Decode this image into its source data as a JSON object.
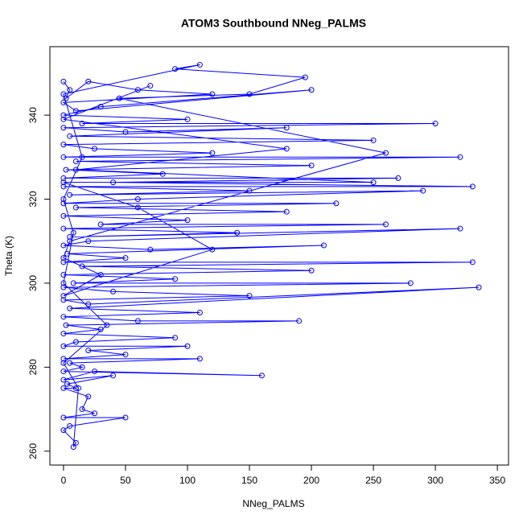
{
  "chart_data": {
    "type": "line",
    "title": "ATOM3 Southbound NNeg_PALMS",
    "x_label": "NNeg_PALMS",
    "y_label": "Theta (K)",
    "color": "#0000ff",
    "markers": true,
    "x": [
      0,
      5,
      2,
      20,
      60,
      120,
      0,
      10,
      200,
      30,
      0,
      100,
      15,
      300,
      0,
      50,
      180,
      5,
      250,
      0,
      25,
      120,
      0,
      320,
      10,
      200,
      2,
      80,
      0,
      270,
      40,
      330,
      0,
      150,
      5,
      290,
      60,
      0,
      220,
      10,
      180,
      0,
      100,
      30,
      260,
      0,
      140,
      5,
      320,
      20,
      0,
      70,
      210,
      3,
      50,
      0,
      330,
      15,
      200,
      0,
      90,
      8,
      280,
      0,
      40,
      150,
      0,
      20,
      335,
      5,
      110,
      0,
      60,
      190,
      2,
      30,
      0,
      90,
      10,
      0,
      100,
      20,
      50,
      0,
      110,
      5,
      15,
      0,
      160,
      25,
      0,
      40,
      3,
      10,
      0,
      20,
      15,
      25,
      0,
      50,
      5,
      0,
      10,
      8,
      12,
      0,
      35,
      0,
      8,
      0,
      15,
      0,
      110,
      90,
      195,
      150,
      45,
      260,
      5,
      0,
      30,
      0,
      120,
      60,
      0,
      250,
      10,
      180,
      0,
      70
    ],
    "values": [
      348,
      346,
      344,
      348,
      346,
      345,
      343,
      341,
      346,
      342,
      340,
      339,
      338,
      338,
      337,
      336,
      337,
      335,
      334,
      333,
      332,
      331,
      330,
      330,
      329,
      328,
      327,
      326,
      325,
      325,
      324,
      323,
      323,
      322,
      321,
      322,
      320,
      319,
      319,
      318,
      317,
      316,
      315,
      314,
      314,
      313,
      312,
      311,
      313,
      310,
      309,
      308,
      309,
      307,
      306,
      305,
      305,
      304,
      303,
      302,
      301,
      300,
      300,
      299,
      298,
      297,
      296,
      295,
      299,
      294,
      293,
      292,
      291,
      291,
      290,
      289,
      288,
      287,
      286,
      285,
      285,
      284,
      283,
      282,
      282,
      281,
      280,
      279,
      278,
      279,
      277,
      278,
      276,
      275,
      275,
      273,
      270,
      269,
      268,
      268,
      266,
      265,
      262,
      261,
      275,
      281,
      290,
      300,
      312,
      320,
      330,
      345,
      352,
      351,
      349,
      345,
      344,
      331,
      310,
      306,
      302,
      297,
      308,
      318,
      324,
      324,
      327,
      332,
      339,
      347
    ],
    "xlim": [
      -11,
      359
    ],
    "ylim": [
      256.7,
      356.3
    ],
    "xticks": [
      0,
      50,
      100,
      150,
      200,
      250,
      300,
      350
    ],
    "yticks": [
      260,
      280,
      300,
      320,
      340
    ]
  }
}
